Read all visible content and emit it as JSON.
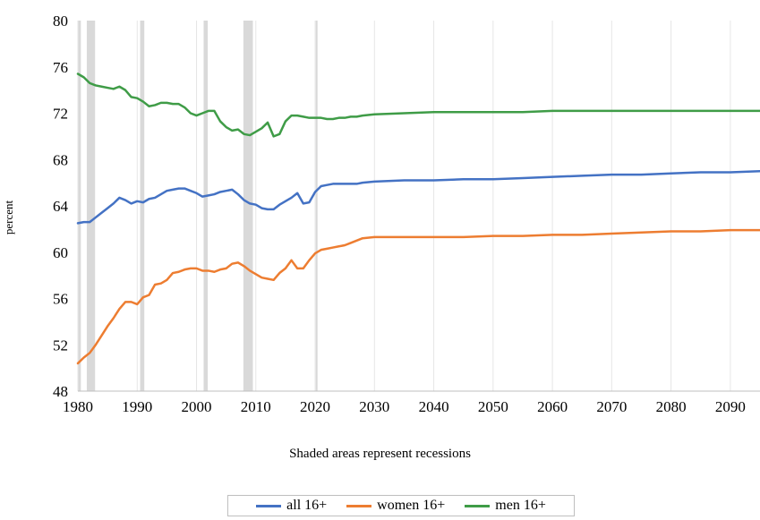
{
  "chart_data": {
    "type": "line",
    "ylabel": "percent",
    "xlabel": "",
    "note": "Shaded areas represent recessions",
    "xlim": [
      1980,
      2095
    ],
    "ylim": [
      48,
      80
    ],
    "x_ticks": [
      1980,
      1990,
      2000,
      2010,
      2020,
      2030,
      2040,
      2050,
      2060,
      2070,
      2080,
      2090
    ],
    "y_ticks": [
      48,
      52,
      56,
      60,
      64,
      68,
      72,
      76,
      80
    ],
    "grid": "vertical",
    "legend_position": "bottom",
    "recessions": [
      [
        1980.0,
        1980.5
      ],
      [
        1981.5,
        1982.9
      ],
      [
        1990.5,
        1991.2
      ],
      [
        2001.2,
        2001.9
      ],
      [
        2007.9,
        2009.5
      ],
      [
        2020.1,
        2020.4
      ]
    ],
    "x": [
      1980,
      1981,
      1982,
      1983,
      1984,
      1985,
      1986,
      1987,
      1988,
      1989,
      1990,
      1991,
      1992,
      1993,
      1994,
      1995,
      1996,
      1997,
      1998,
      1999,
      2000,
      2001,
      2002,
      2003,
      2004,
      2005,
      2006,
      2007,
      2008,
      2009,
      2010,
      2011,
      2012,
      2013,
      2014,
      2015,
      2016,
      2017,
      2018,
      2019,
      2020,
      2021,
      2022,
      2023,
      2024,
      2025,
      2026,
      2027,
      2028,
      2030,
      2035,
      2040,
      2045,
      2050,
      2055,
      2060,
      2065,
      2070,
      2075,
      2080,
      2085,
      2090,
      2095
    ],
    "series": [
      {
        "name": "all 16+",
        "color": "#4472C4",
        "values": [
          62.5,
          62.6,
          62.6,
          63.0,
          63.4,
          63.8,
          64.2,
          64.7,
          64.5,
          64.2,
          64.4,
          64.3,
          64.6,
          64.7,
          65.0,
          65.3,
          65.4,
          65.5,
          65.5,
          65.3,
          65.1,
          64.8,
          64.9,
          65.0,
          65.2,
          65.3,
          65.4,
          65.0,
          64.5,
          64.2,
          64.1,
          63.8,
          63.7,
          63.7,
          64.1,
          64.4,
          64.7,
          65.1,
          64.2,
          64.3,
          65.2,
          65.7,
          65.8,
          65.9,
          65.9,
          65.9,
          65.9,
          65.9,
          66.0,
          66.1,
          66.2,
          66.2,
          66.3,
          66.3,
          66.4,
          66.5,
          66.6,
          66.7,
          66.7,
          66.8,
          66.9,
          66.9,
          67.0
        ]
      },
      {
        "name": "women 16+",
        "color": "#ED7D31",
        "values": [
          50.4,
          50.9,
          51.3,
          52.0,
          52.8,
          53.6,
          54.3,
          55.1,
          55.7,
          55.7,
          55.5,
          56.1,
          56.3,
          57.2,
          57.3,
          57.6,
          58.2,
          58.3,
          58.5,
          58.6,
          58.6,
          58.4,
          58.4,
          58.3,
          58.5,
          58.6,
          59.0,
          59.1,
          58.8,
          58.4,
          58.1,
          57.8,
          57.7,
          57.6,
          58.2,
          58.6,
          59.3,
          58.6,
          58.6,
          59.3,
          59.9,
          60.2,
          60.3,
          60.4,
          60.5,
          60.6,
          60.8,
          61.0,
          61.2,
          61.3,
          61.3,
          61.3,
          61.3,
          61.4,
          61.4,
          61.5,
          61.5,
          61.6,
          61.7,
          61.8,
          61.8,
          61.9,
          61.9
        ]
      },
      {
        "name": "men 16+",
        "color": "#3F9C47",
        "values": [
          75.4,
          75.1,
          74.6,
          74.4,
          74.3,
          74.2,
          74.1,
          74.3,
          74.0,
          73.4,
          73.3,
          73.0,
          72.6,
          72.7,
          72.9,
          72.9,
          72.8,
          72.8,
          72.5,
          72.0,
          71.8,
          72.0,
          72.2,
          72.2,
          71.3,
          70.8,
          70.5,
          70.6,
          70.2,
          70.1,
          70.4,
          70.7,
          71.2,
          70.0,
          70.2,
          71.3,
          71.8,
          71.8,
          71.7,
          71.6,
          71.6,
          71.6,
          71.5,
          71.5,
          71.6,
          71.6,
          71.7,
          71.7,
          71.8,
          71.9,
          72.0,
          72.1,
          72.1,
          72.1,
          72.1,
          72.2,
          72.2,
          72.2,
          72.2,
          72.2,
          72.2,
          72.2,
          72.2
        ]
      }
    ]
  }
}
